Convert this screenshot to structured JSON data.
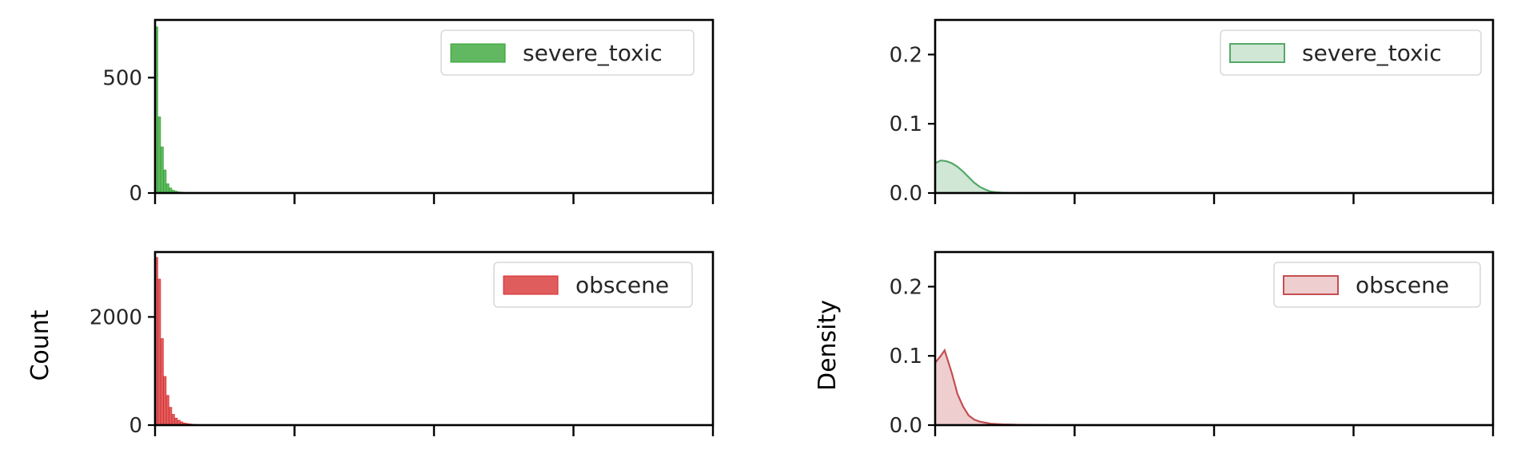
{
  "chart_data": [
    {
      "type": "histogram",
      "panel": "count-severe-toxic",
      "legend": "severe_toxic",
      "color": "#2ca02c",
      "ylabel": "",
      "ylim": [
        0,
        750
      ],
      "yticks": [
        0,
        500
      ],
      "ytick_labels": [
        "0",
        "500"
      ],
      "xlim": [
        0,
        100
      ],
      "bin_width": 0.5,
      "values": [
        720,
        330,
        200,
        100,
        40,
        22,
        12,
        8,
        5,
        4,
        3,
        2,
        2,
        2,
        1,
        1,
        1,
        1,
        1,
        1
      ]
    },
    {
      "type": "area",
      "panel": "density-severe-toxic",
      "legend": "severe_toxic",
      "color": "#55a868",
      "ylabel": "",
      "ylim": [
        0,
        0.25
      ],
      "yticks": [
        0,
        0.1,
        0.2
      ],
      "ytick_labels": [
        "0.0",
        "0.1",
        "0.2"
      ],
      "xlim": [
        0,
        100
      ],
      "x": [
        0,
        1,
        2,
        3,
        4,
        5,
        6,
        7,
        8,
        9,
        10,
        11,
        12,
        13,
        14,
        15,
        20,
        30,
        50,
        100
      ],
      "y": [
        0.043,
        0.047,
        0.046,
        0.043,
        0.038,
        0.031,
        0.023,
        0.015,
        0.009,
        0.005,
        0.002,
        0.001,
        0.0005,
        0.0002,
        0.0001,
        0.0,
        0.0,
        0.0,
        0.0,
        0.0
      ]
    },
    {
      "type": "histogram",
      "panel": "count-obscene",
      "legend": "obscene",
      "color": "#d62728",
      "ylabel": "Count",
      "ylim": [
        0,
        3200
      ],
      "yticks": [
        0,
        2000
      ],
      "ytick_labels": [
        "0",
        "2000"
      ],
      "xlim": [
        0,
        100
      ],
      "bin_width": 0.5,
      "values": [
        3100,
        2700,
        1600,
        900,
        550,
        330,
        200,
        130,
        90,
        60,
        40,
        30,
        22,
        16,
        12,
        9,
        7,
        5,
        4,
        3
      ]
    },
    {
      "type": "area",
      "panel": "density-obscene",
      "legend": "obscene",
      "color": "#c44e52",
      "ylabel": "Density",
      "ylim": [
        0,
        0.25
      ],
      "yticks": [
        0,
        0.1,
        0.2
      ],
      "ytick_labels": [
        "0.0",
        "0.1",
        "0.2"
      ],
      "xlim": [
        0,
        100
      ],
      "x": [
        0,
        1,
        1.7,
        3,
        4,
        5,
        6,
        7,
        8,
        10,
        12,
        15,
        20,
        30,
        50,
        100
      ],
      "y": [
        0.09,
        0.1,
        0.108,
        0.075,
        0.045,
        0.027,
        0.014,
        0.008,
        0.005,
        0.002,
        0.001,
        0.0005,
        0.0001,
        0.0,
        0.0,
        0.0
      ]
    }
  ]
}
